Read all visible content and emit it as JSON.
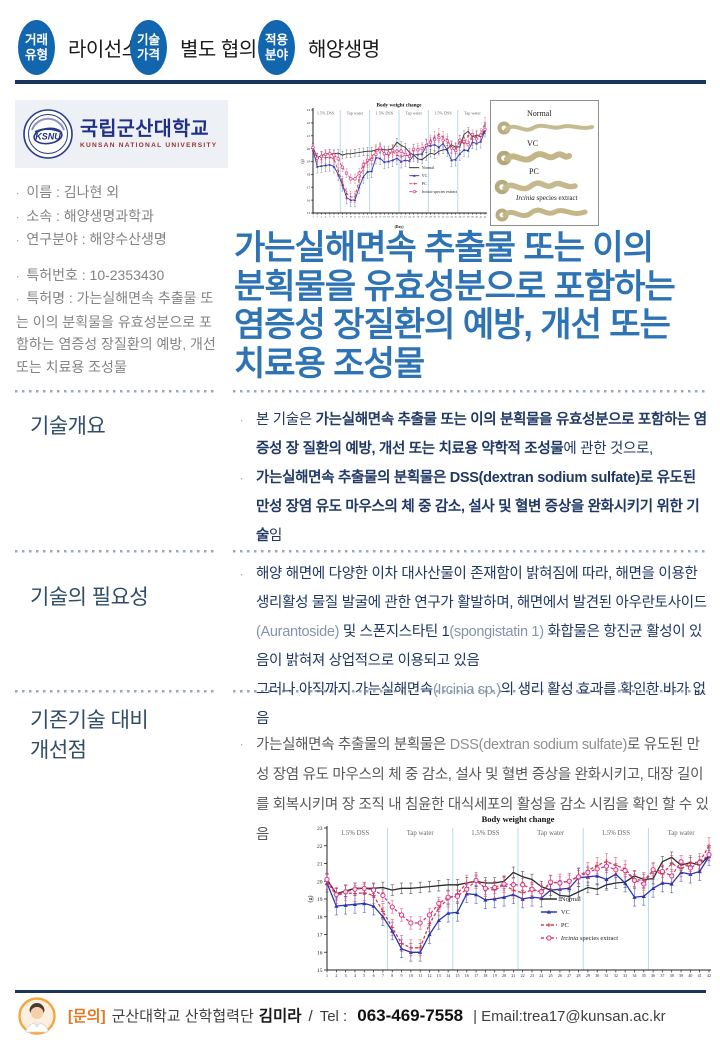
{
  "header": {
    "badges": [
      {
        "circle_line1": "거래",
        "circle_line2": "유형",
        "label": "라이선스"
      },
      {
        "circle_line1": "기술",
        "circle_line2": "가격",
        "label": "별도 협의"
      },
      {
        "circle_line1": "적용",
        "circle_line2": "분야",
        "label": "해양생명"
      }
    ]
  },
  "university": {
    "seal_text": "KSNU",
    "name_ko": "국립군산대학교",
    "name_en": "KUNSAN NATIONAL UNIVERSITY"
  },
  "profile": {
    "items": [
      "이름 : 김나현 외",
      "소속 : 해양생명과학과",
      "연구분야 : 해양수산생명"
    ]
  },
  "patent": {
    "number": "특허번호 : 10-2353430",
    "name": "특허명 : 가는실해면속 추출물 또는 이의 분획물을 유효성분으로 포함하는 염증성 장질환의 예방, 개선 또는 치료용 조성물"
  },
  "title": {
    "lines": [
      "가는실해면속 추출물 또는 이의",
      "분획물을 유효성분으로 포함하는",
      "염증성 장질환의 예방, 개선 또는",
      "치료용 조성물"
    ]
  },
  "sections": [
    {
      "title": "기술개요",
      "bullets": [
        [
          {
            "t": "본 기술은 "
          },
          {
            "t": "가는실해면속 추출물 또는 이의 분획물을 유효성분으로 포함하는 염증성 장 질환의 예방, 개선 또는 치료용 약학적 조성물",
            "bold": true
          },
          {
            "t": "에 관한 것으로,"
          }
        ],
        [
          {
            "t": "가는실해면속 추출물의 분획물은 DSS(dextran sodium sulfate)로 유도된 만성 장염 유도 마우스의 체 중 감소, 설사 및 혈변 증상을 완화시키기 위한 기술",
            "bold": true
          },
          {
            "t": "임"
          }
        ]
      ]
    },
    {
      "title": "기술의 필요성",
      "bullets": [
        [
          {
            "t": "해양 해면에 다양한 이차 대사산물이 존재함이 밝혀짐에 따라, 해면을 이용한 생리활성 물질 발굴에 관한 연구가 활발하며, 해면에서 발견된 아우란토사이드"
          },
          {
            "t": "(Aurantoside)",
            "muted": true
          },
          {
            "t": " 및 스폰지스타틴 1"
          },
          {
            "t": "(spongistatin 1)",
            "muted": true
          },
          {
            "t": " 화합물은 항진균 활성이 있음이 밝혀져 상업적으로 이용되고 있음"
          }
        ],
        [
          {
            "t": "그러나 아직까지 가는실해면속"
          },
          {
            "t": "(Ircinia sp.)",
            "muted": true
          },
          {
            "t": "의 생리 활성 효과를 확인한 바가 없음"
          }
        ]
      ]
    },
    {
      "title": "기존기술 대비\n개선점",
      "bullets": [
        [
          {
            "t": "가는실해면속 추출물의 분획물은 "
          },
          {
            "t": "DSS(dextran sodium sulfate)",
            "muted": true
          },
          {
            "t": "로 유도된 만성 장염 유도 마우스의 체 중 감소, 설사 및 혈변 증상을 완화시키고, 대장 길이를 회복시키며 장 조직 내 침윤한 대식세포의 활성을 감소 시킴을 확인 할 수 있음"
          }
        ]
      ]
    }
  ],
  "figure": {
    "colon_labels": [
      "Normal",
      "VC",
      "PC",
      "Ircinia species extract"
    ]
  },
  "footer": {
    "inquiry": "[문의]",
    "org": "군산대학교 산학협력단",
    "name": "김미라",
    "slash": "/",
    "tel_label": "Tel :",
    "tel": "063-469-7558",
    "email": "| Email:trea17@kunsan.ac.kr"
  },
  "colors": {
    "badge_blue": "#1266ad",
    "navy_rule": "#17375e",
    "title_blue": "#2e74b5",
    "section_title": "#2f4d68",
    "body_navy": "#1f3864",
    "accent_orange": "#e87722"
  },
  "chart_data": {
    "type": "line",
    "title": "Body weight change",
    "xlabel": "(Day)",
    "ylabel": "(g)",
    "x_range": [
      1,
      42
    ],
    "ylim": [
      15,
      23
    ],
    "grid": false,
    "legend_position": "inside-right",
    "phase_line_color": "#b5dbe4",
    "phases": [
      {
        "label": "1.5% DSS",
        "start": 1,
        "end": 7
      },
      {
        "label": "Tap water",
        "start": 8,
        "end": 14
      },
      {
        "label": "1.5% DSS",
        "start": 15,
        "end": 21
      },
      {
        "label": "Tap water",
        "start": 22,
        "end": 28
      },
      {
        "label": "1.5% DSS",
        "start": 29,
        "end": 35
      },
      {
        "label": "Tap water",
        "start": 36,
        "end": 42
      }
    ],
    "series": [
      {
        "name": "Normal",
        "color": "#2b2b2b",
        "dash": false,
        "marker": "none",
        "error": 0.3,
        "values": [
          20.1,
          19.3,
          19.45,
          19.6,
          19.6,
          19.6,
          19.65,
          19.5,
          19.6,
          19.6,
          19.65,
          19.7,
          19.75,
          19.8,
          19.8,
          19.9,
          20.0,
          19.9,
          19.9,
          20.0,
          20.5,
          20.25,
          20.1,
          19.7,
          19.5,
          19.2,
          19.15,
          19.4,
          19.65,
          19.55,
          19.8,
          19.9,
          19.95,
          20.3,
          20.1,
          20.15,
          21.1,
          21.35,
          20.9,
          21.05,
          20.9,
          21.45
        ]
      },
      {
        "name": "VC",
        "color": "#2a35b0",
        "dash": false,
        "marker": "triangle",
        "error": 0.5,
        "values": [
          19.9,
          18.6,
          18.65,
          18.7,
          18.75,
          18.6,
          18.0,
          17.2,
          16.2,
          16.0,
          16.0,
          17.0,
          17.8,
          18.2,
          18.25,
          19.3,
          19.25,
          18.95,
          19.0,
          19.1,
          19.25,
          19.0,
          19.1,
          19.05,
          19.5,
          19.55,
          19.6,
          20.2,
          20.25,
          20.3,
          20.1,
          20.4,
          19.9,
          19.1,
          19.15,
          19.6,
          19.9,
          19.85,
          20.5,
          20.4,
          20.55,
          21.4
        ]
      },
      {
        "name": "PC",
        "color": "#d23b4f",
        "dash": true,
        "marker": "plus",
        "error": 0.45,
        "values": [
          20.0,
          19.2,
          19.35,
          19.3,
          19.35,
          19.2,
          18.3,
          17.4,
          16.5,
          16.25,
          16.25,
          17.6,
          18.5,
          19.0,
          19.3,
          19.9,
          20.05,
          19.6,
          19.5,
          19.8,
          19.5,
          19.35,
          19.5,
          19.4,
          19.9,
          19.95,
          20.0,
          20.3,
          20.6,
          20.9,
          21.1,
          20.9,
          20.7,
          20.1,
          20.05,
          20.6,
          20.4,
          21.0,
          20.7,
          21.0,
          21.1,
          22.0
        ]
      },
      {
        "name": "Ircinia species extract",
        "color": "#d6367f",
        "dash": true,
        "marker": "circle-open",
        "error": 0.35,
        "italic_first_word": true,
        "values": [
          20.1,
          19.25,
          19.4,
          19.55,
          19.6,
          19.5,
          19.2,
          18.55,
          18.1,
          17.65,
          17.65,
          18.1,
          18.75,
          19.1,
          19.15,
          19.55,
          20.05,
          19.6,
          19.65,
          19.85,
          19.8,
          19.8,
          19.55,
          19.4,
          19.95,
          19.9,
          20.0,
          20.25,
          20.5,
          20.7,
          20.85,
          20.65,
          20.6,
          20.05,
          19.85,
          20.65,
          20.55,
          20.3,
          21.1,
          20.75,
          21.05,
          21.5
        ]
      }
    ]
  }
}
